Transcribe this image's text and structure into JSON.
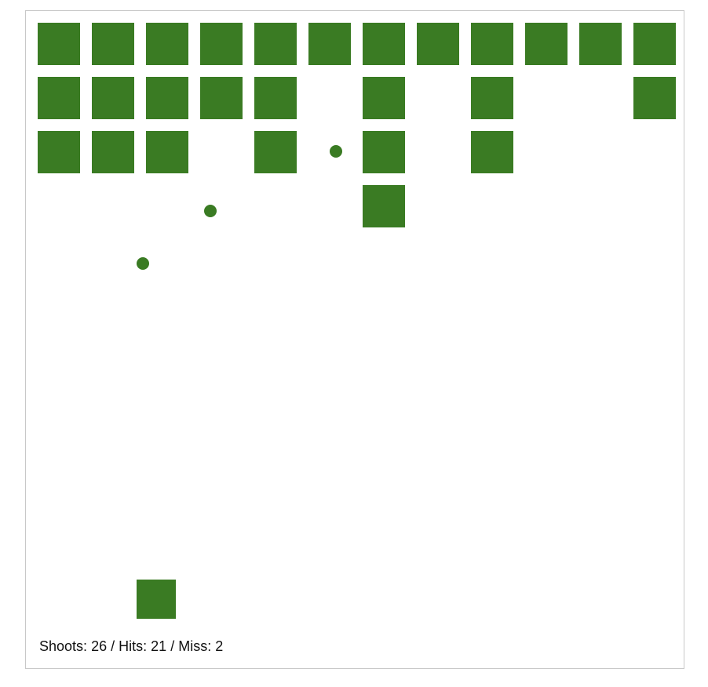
{
  "colors": {
    "accent": "#3a7b23",
    "board_border": "#c8c8c8",
    "background": "#ffffff",
    "text": "#111111"
  },
  "grid": {
    "columns": 12,
    "rows": 4,
    "cells": [
      [
        1,
        1,
        1,
        1,
        1,
        1,
        1,
        1,
        1,
        1,
        1,
        1
      ],
      [
        1,
        1,
        1,
        1,
        1,
        0,
        1,
        0,
        1,
        0,
        0,
        1
      ],
      [
        1,
        1,
        1,
        0,
        1,
        0,
        1,
        0,
        1,
        0,
        0,
        0
      ],
      [
        0,
        0,
        0,
        0,
        0,
        0,
        1,
        0,
        0,
        0,
        0,
        0
      ]
    ]
  },
  "bullets_count": 3,
  "score": {
    "shoots_label": "Shoots:",
    "shoots": "26",
    "hits_label": "Hits:",
    "hits": "21",
    "miss_label": "Miss:",
    "miss": "2",
    "separator": "/"
  }
}
